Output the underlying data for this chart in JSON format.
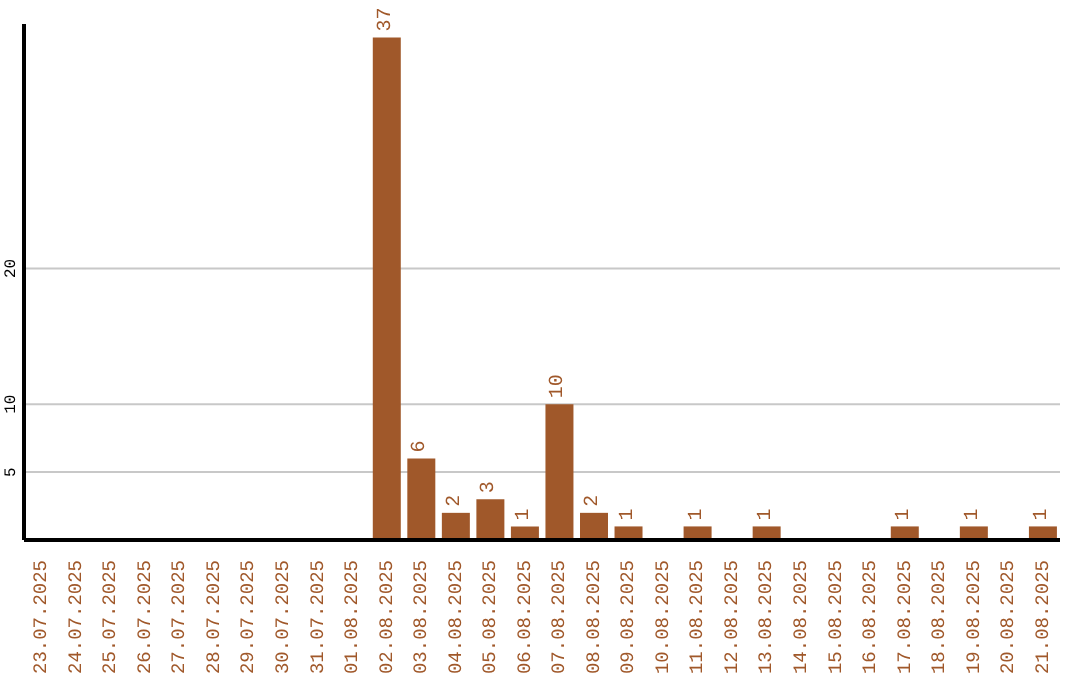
{
  "chart_data": {
    "type": "bar",
    "categories": [
      "23.07.2025",
      "24.07.2025",
      "25.07.2025",
      "26.07.2025",
      "27.07.2025",
      "28.07.2025",
      "29.07.2025",
      "30.07.2025",
      "31.07.2025",
      "01.08.2025",
      "02.08.2025",
      "03.08.2025",
      "04.08.2025",
      "05.08.2025",
      "06.08.2025",
      "07.08.2025",
      "08.08.2025",
      "09.08.2025",
      "10.08.2025",
      "11.08.2025",
      "12.08.2025",
      "13.08.2025",
      "14.08.2025",
      "15.08.2025",
      "16.08.2025",
      "17.08.2025",
      "18.08.2025",
      "19.08.2025",
      "20.08.2025",
      "21.08.2025"
    ],
    "values": [
      0,
      0,
      0,
      0,
      0,
      0,
      0,
      0,
      0,
      0,
      37,
      6,
      2,
      3,
      1,
      10,
      2,
      1,
      0,
      1,
      0,
      1,
      0,
      0,
      0,
      1,
      0,
      1,
      0,
      1
    ],
    "value_labels": [
      null,
      null,
      null,
      null,
      null,
      null,
      null,
      null,
      null,
      null,
      "37",
      "6",
      "2",
      "3",
      "1",
      "10",
      "2",
      "1",
      null,
      "1",
      null,
      "1",
      null,
      null,
      null,
      "1",
      null,
      "1",
      null,
      "1"
    ],
    "color": "#a0582a",
    "ylim": [
      0,
      38
    ],
    "yticks": [
      5,
      10,
      20
    ],
    "grid": "y"
  }
}
